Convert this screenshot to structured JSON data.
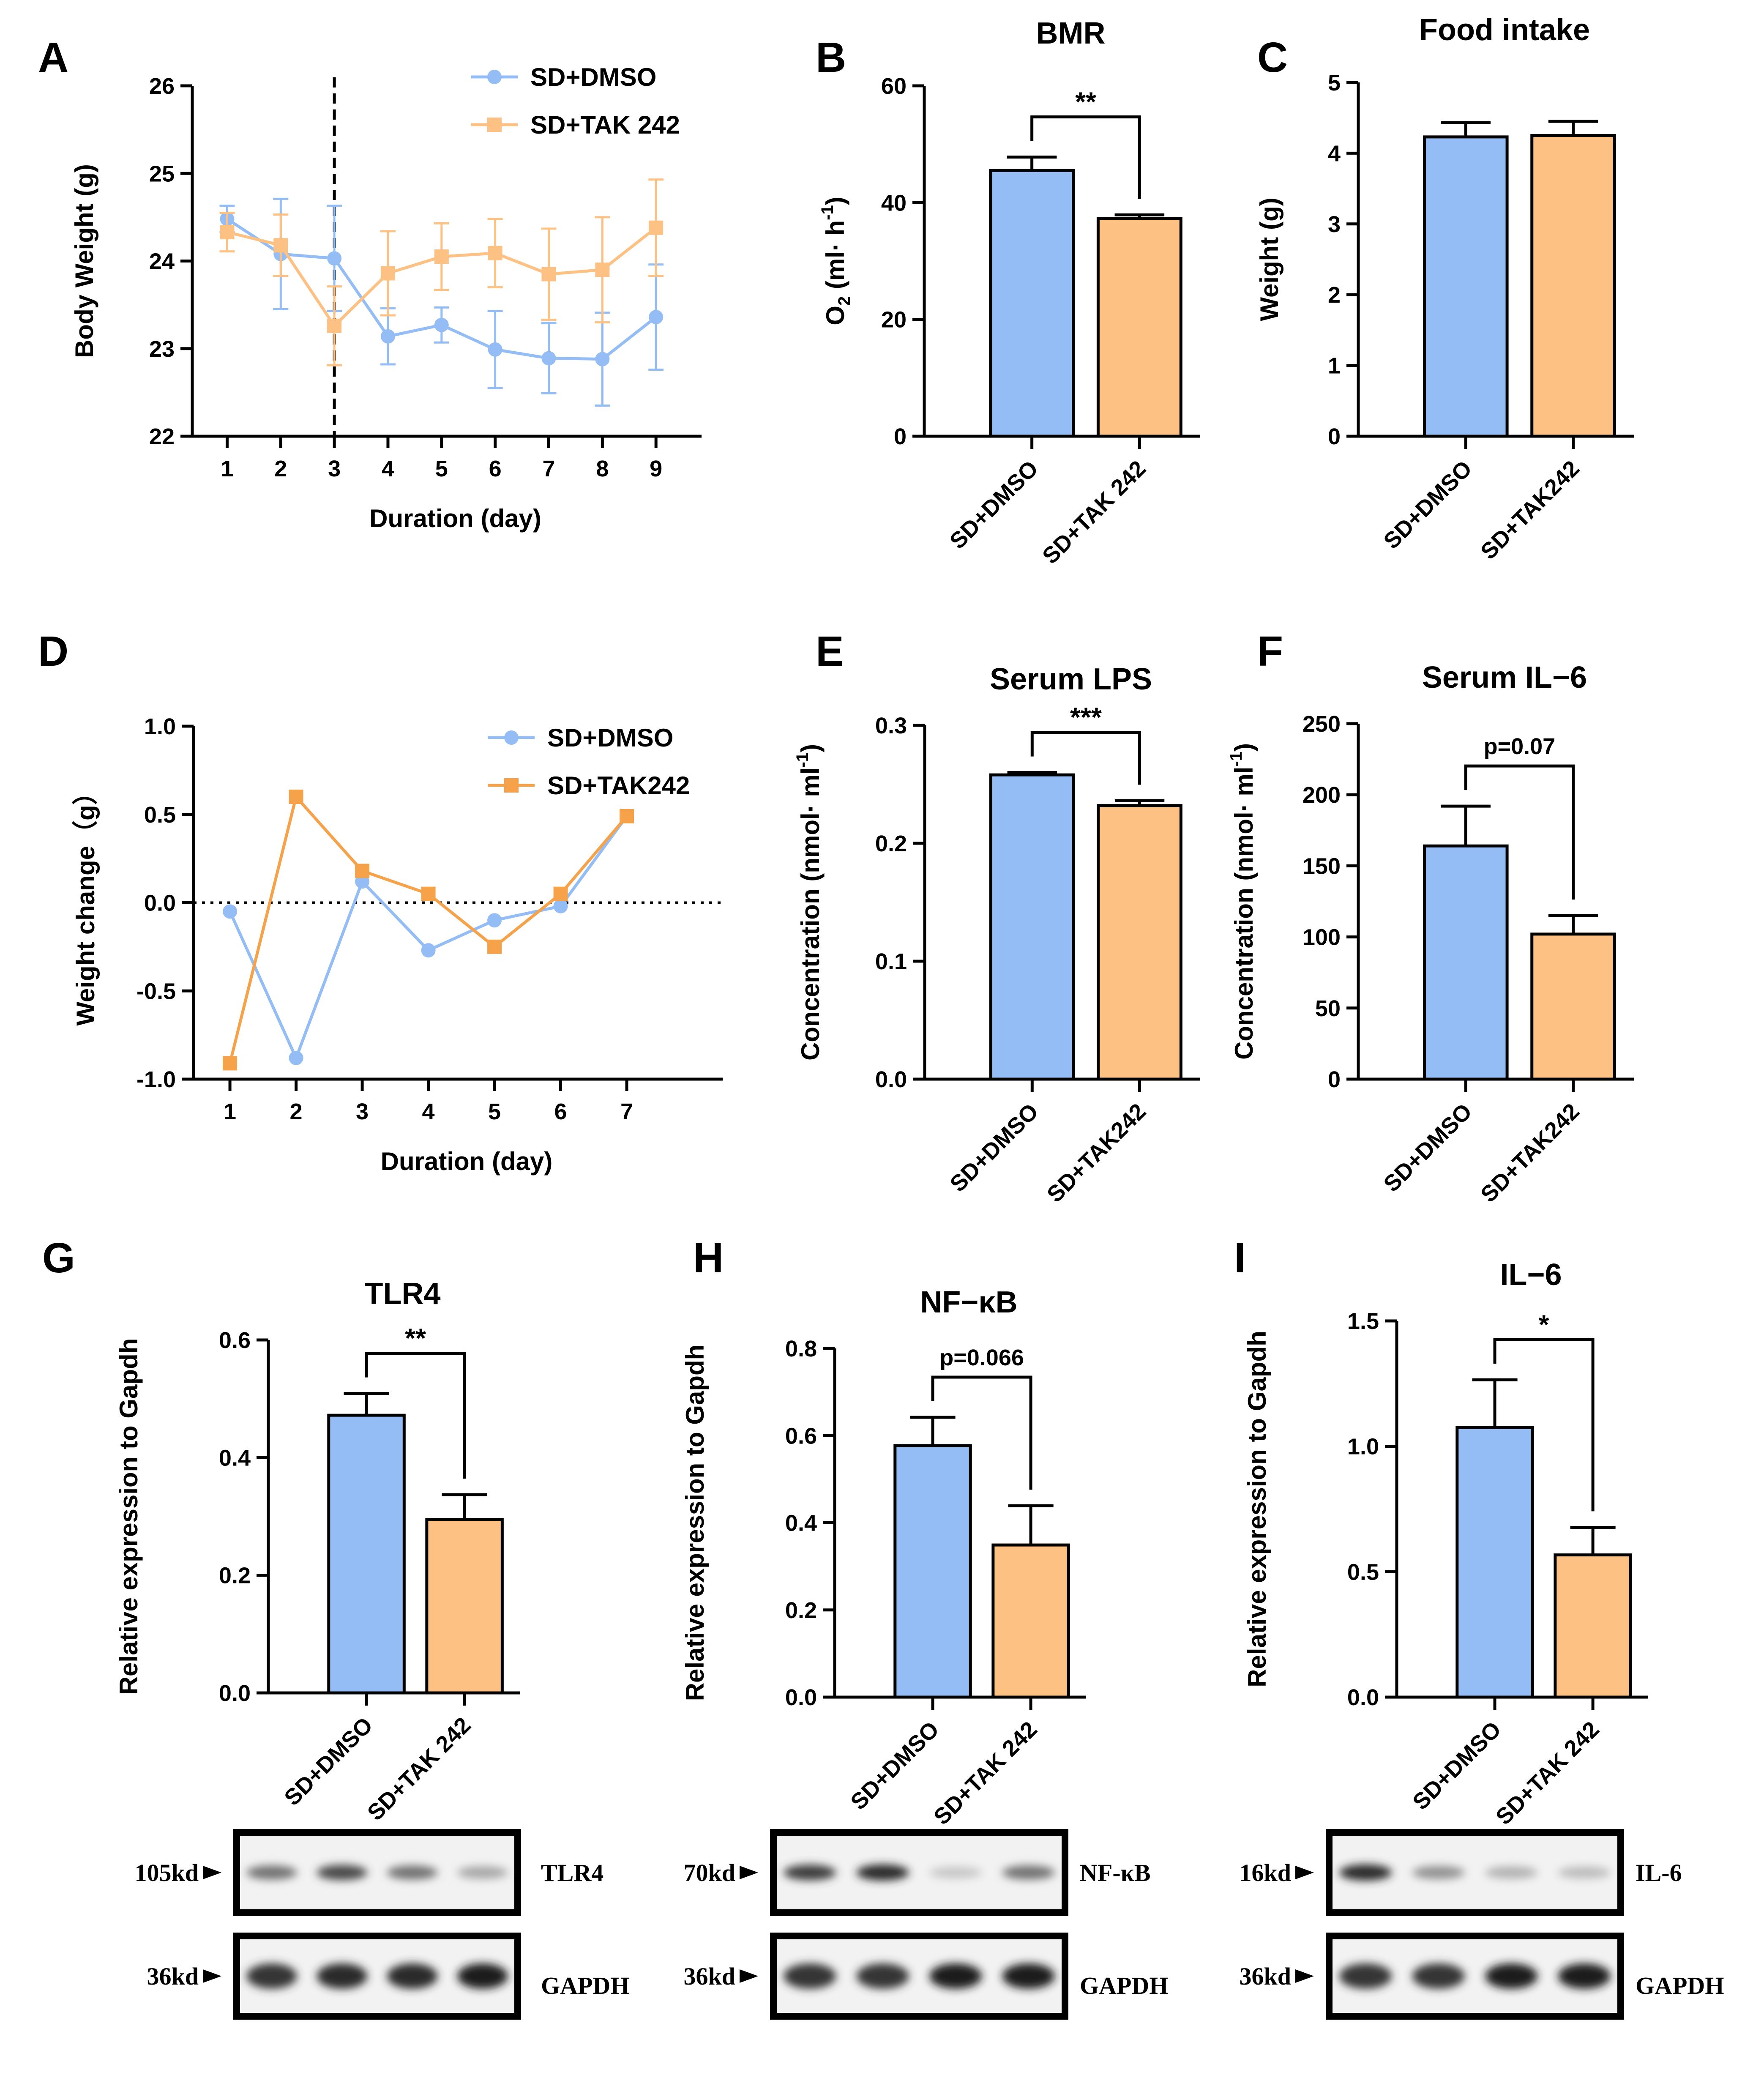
{
  "colors": {
    "dmso": "#93bdf4",
    "tak": "#fcc183",
    "tak_dark": "#f6a24a",
    "black": "#000000"
  },
  "chart_data": [
    {
      "id": "A",
      "type": "line",
      "letter": "A",
      "title": "",
      "xlabel": "Duration (day)",
      "ylabel": "Body Weight  (g)",
      "x": [
        1,
        2,
        3,
        4,
        5,
        6,
        7,
        8,
        9
      ],
      "ylim": [
        22,
        26
      ],
      "yticks": [
        "22",
        "23",
        "24",
        "25",
        "26"
      ],
      "vline_at_day": 3,
      "series": [
        {
          "name": "SD+DMSO",
          "marker": "circle",
          "values": [
            24.48,
            24.08,
            24.03,
            23.14,
            23.27,
            22.99,
            22.89,
            22.88,
            23.36
          ],
          "errors": [
            0.15,
            0.63,
            0.6,
            0.32,
            0.2,
            0.44,
            0.4,
            0.53,
            0.6
          ]
        },
        {
          "name": "SD+TAK 242",
          "marker": "square",
          "values": [
            24.33,
            24.18,
            23.26,
            23.86,
            24.05,
            24.09,
            23.85,
            23.9,
            24.38
          ],
          "errors": [
            0.22,
            0.35,
            0.45,
            0.48,
            0.38,
            0.39,
            0.52,
            0.6,
            0.55
          ]
        }
      ]
    },
    {
      "id": "B",
      "type": "bar",
      "letter": "B",
      "title": "BMR",
      "ylabel": "O",
      "ylabel_sub": "2",
      "ylabel_rest": " (ml· h",
      "ylabel_sup": "-1",
      "ylabel_end": ")",
      "ylim": [
        0,
        60
      ],
      "yticks": [
        "0",
        "20",
        "40",
        "60"
      ],
      "categories": [
        "SD+DMSO",
        "SD+TAK 242"
      ],
      "values": [
        45.5,
        37.3
      ],
      "errors": [
        2.3,
        0.6
      ],
      "significance": "**"
    },
    {
      "id": "C",
      "type": "bar",
      "letter": "C",
      "title": "Food intake",
      "ylabel": "Weight  (g)",
      "ylim": [
        0,
        5
      ],
      "yticks": [
        "0",
        "1",
        "2",
        "3",
        "4",
        "5"
      ],
      "categories": [
        "SD+DMSO",
        "SD+TAK242"
      ],
      "values": [
        4.23,
        4.25
      ],
      "errors": [
        0.2,
        0.2
      ]
    },
    {
      "id": "D",
      "type": "line",
      "letter": "D",
      "title": "",
      "xlabel": "Duration (day)",
      "ylabel": "Weight change（g）",
      "x": [
        1,
        2,
        3,
        4,
        5,
        6,
        7
      ],
      "ylim": [
        -1.0,
        1.0
      ],
      "yticks": [
        "-1.0",
        "-0.5",
        "0.0",
        "0.5",
        "1.0"
      ],
      "zero_line": true,
      "series": [
        {
          "name": "SD+DMSO",
          "marker": "circle",
          "values": [
            -0.05,
            -0.88,
            0.12,
            -0.27,
            -0.1,
            -0.02,
            0.49
          ]
        },
        {
          "name": "SD+TAK242",
          "marker": "square",
          "values": [
            -0.91,
            0.6,
            0.18,
            0.05,
            -0.25,
            0.05,
            0.49
          ]
        }
      ]
    },
    {
      "id": "E",
      "type": "bar",
      "letter": "E",
      "title": "Serum LPS",
      "ylabel": "Concentration (nmol· ml",
      "ylabel_sup": "-1",
      "ylabel_end": ")",
      "ylim": [
        0,
        0.3
      ],
      "yticks": [
        "0.0",
        "0.1",
        "0.2",
        "0.3"
      ],
      "categories": [
        "SD+DMSO",
        "SD+TAK242"
      ],
      "values": [
        0.258,
        0.232
      ],
      "errors": [
        0.002,
        0.004
      ],
      "significance": "***"
    },
    {
      "id": "F",
      "type": "bar",
      "letter": "F",
      "title": "Serum IL−6",
      "ylabel": "Concentration (nmol· ml",
      "ylabel_sup": "-1",
      "ylabel_end": ")",
      "ylim": [
        0,
        250
      ],
      "yticks": [
        "0",
        "50",
        "100",
        "150",
        "200",
        "250"
      ],
      "categories": [
        "SD+DMSO",
        "SD+TAK242"
      ],
      "values": [
        164,
        102
      ],
      "errors": [
        28,
        13
      ],
      "significance": "p=0.07"
    },
    {
      "id": "G",
      "type": "bar",
      "letter": "G",
      "title": "TLR4",
      "ylabel": "Relative expression to Gapdh",
      "ylim": [
        0,
        0.6
      ],
      "yticks": [
        "0.0",
        "0.2",
        "0.4",
        "0.6"
      ],
      "categories": [
        "SD+DMSO",
        "SD+TAK 242"
      ],
      "values": [
        0.472,
        0.295
      ],
      "errors": [
        0.037,
        0.042
      ],
      "significance": "**"
    },
    {
      "id": "H",
      "type": "bar",
      "letter": "H",
      "title": "NF−κB",
      "ylabel": "Relative expression to Gapdh",
      "ylim": [
        0,
        0.8
      ],
      "yticks": [
        "0.0",
        "0.2",
        "0.4",
        "0.6",
        "0.8"
      ],
      "categories": [
        "SD+DMSO",
        "SD+TAK 242"
      ],
      "values": [
        0.577,
        0.349
      ],
      "errors": [
        0.065,
        0.09
      ],
      "significance": "p=0.066"
    },
    {
      "id": "I",
      "type": "bar",
      "letter": "I",
      "title": "IL−6",
      "ylabel": "Relative expression to Gapdh",
      "ylim": [
        0,
        1.5
      ],
      "yticks": [
        "0.0",
        "0.5",
        "1.0",
        "1.5"
      ],
      "categories": [
        "SD+DMSO",
        "SD+TAK 242"
      ],
      "values": [
        1.075,
        0.567
      ],
      "errors": [
        0.19,
        0.11
      ],
      "significance": "*"
    }
  ],
  "blots": [
    {
      "id": "G",
      "rows": [
        {
          "size": "105kd",
          "protein": "TLR4",
          "intensities": [
            0.55,
            0.75,
            0.55,
            0.3
          ]
        },
        {
          "size": "36kd",
          "protein": "GAPDH",
          "intensities": [
            0.85,
            0.9,
            0.9,
            0.95
          ]
        }
      ]
    },
    {
      "id": "H",
      "rows": [
        {
          "size": "70kd",
          "protein": "NF-κB",
          "intensities": [
            0.8,
            0.9,
            0.15,
            0.55
          ]
        },
        {
          "size": "36kd",
          "protein": "GAPDH",
          "intensities": [
            0.85,
            0.85,
            0.95,
            0.95
          ]
        }
      ]
    },
    {
      "id": "I",
      "rows": [
        {
          "size": "16kd",
          "protein": "IL-6",
          "intensities": [
            0.9,
            0.4,
            0.25,
            0.2
          ]
        },
        {
          "size": "36kd",
          "protein": "GAPDH",
          "intensities": [
            0.85,
            0.85,
            0.95,
            0.95
          ]
        }
      ]
    }
  ]
}
